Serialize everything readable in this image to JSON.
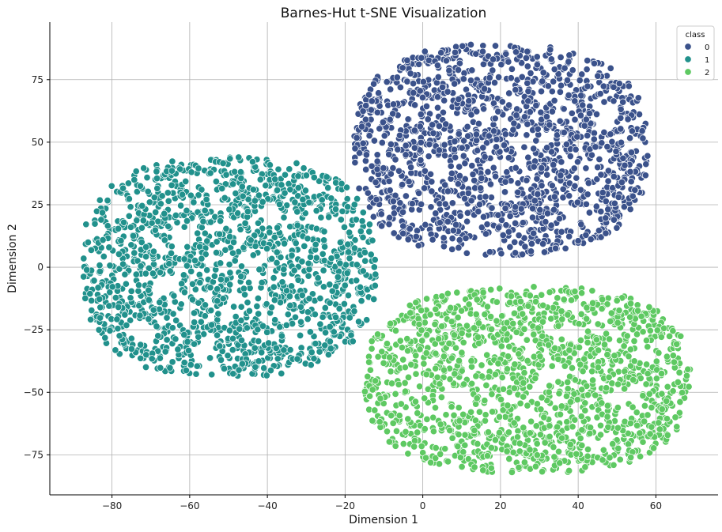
{
  "chart_data": {
    "type": "scatter",
    "title": "Barnes-Hut t-SNE Visualization",
    "xlabel": "Dimension 1",
    "ylabel": "Dimension 2",
    "xlim": [
      -96,
      76
    ],
    "ylim": [
      -91,
      98
    ],
    "xticks": [
      -80,
      -60,
      -40,
      -20,
      0,
      20,
      40,
      60
    ],
    "yticks": [
      -75,
      -50,
      -25,
      0,
      25,
      50,
      75
    ],
    "grid": true,
    "legend": {
      "title": "class",
      "placement": "top-right"
    },
    "series": [
      {
        "name": "0",
        "color": "#3b528b",
        "points_per_class": 1500,
        "cluster": {
          "x_range": [
            -18,
            58
          ],
          "y_range": [
            4,
            89
          ],
          "center": [
            20,
            47
          ]
        }
      },
      {
        "name": "1",
        "color": "#21918c",
        "points_per_class": 1500,
        "cluster": {
          "x_range": [
            -88,
            -12
          ],
          "y_range": [
            -45,
            43
          ],
          "center": [
            -50,
            0
          ]
        }
      },
      {
        "name": "2",
        "color": "#5ec962",
        "points_per_class": 1500,
        "cluster": {
          "x_range": [
            -15,
            69
          ],
          "y_range": [
            -82,
            -7
          ],
          "center": [
            27,
            -45
          ]
        }
      }
    ]
  }
}
